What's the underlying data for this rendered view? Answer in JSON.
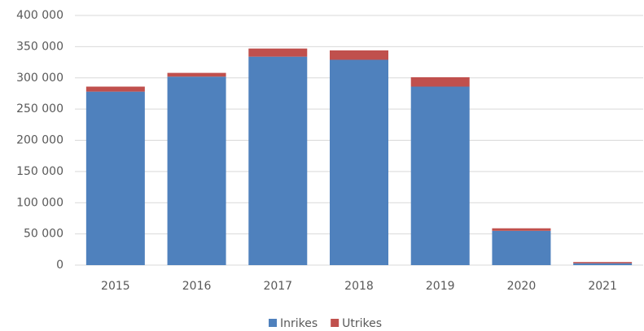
{
  "chart_data": {
    "type": "stacked_bar",
    "categories": [
      "2015",
      "2016",
      "2017",
      "2018",
      "2019",
      "2020",
      "2021"
    ],
    "series": [
      {
        "name": "Inrikes",
        "color": "#4f81bd",
        "values": [
          278000,
          302000,
          334000,
          329000,
          286000,
          55000,
          3000
        ]
      },
      {
        "name": "Utrikes",
        "color": "#c0504d",
        "values": [
          8000,
          6000,
          13000,
          15000,
          15000,
          4000,
          2000
        ]
      }
    ],
    "ylim": [
      0,
      400000
    ],
    "yticks": [
      0,
      {
        "value": 50000,
        "label": "50 000"
      },
      {
        "value": 100000,
        "label": "100 000"
      },
      {
        "value": 150000,
        "label": "150 000"
      },
      {
        "value": 200000,
        "label": "200 000"
      },
      {
        "value": 250000,
        "label": "250 000"
      },
      {
        "value": 300000,
        "label": "300 000"
      },
      {
        "value": 350000,
        "label": "350 000"
      },
      {
        "value": 400000,
        "label": "400 000"
      }
    ],
    "grid": true,
    "legend": "bottom"
  }
}
